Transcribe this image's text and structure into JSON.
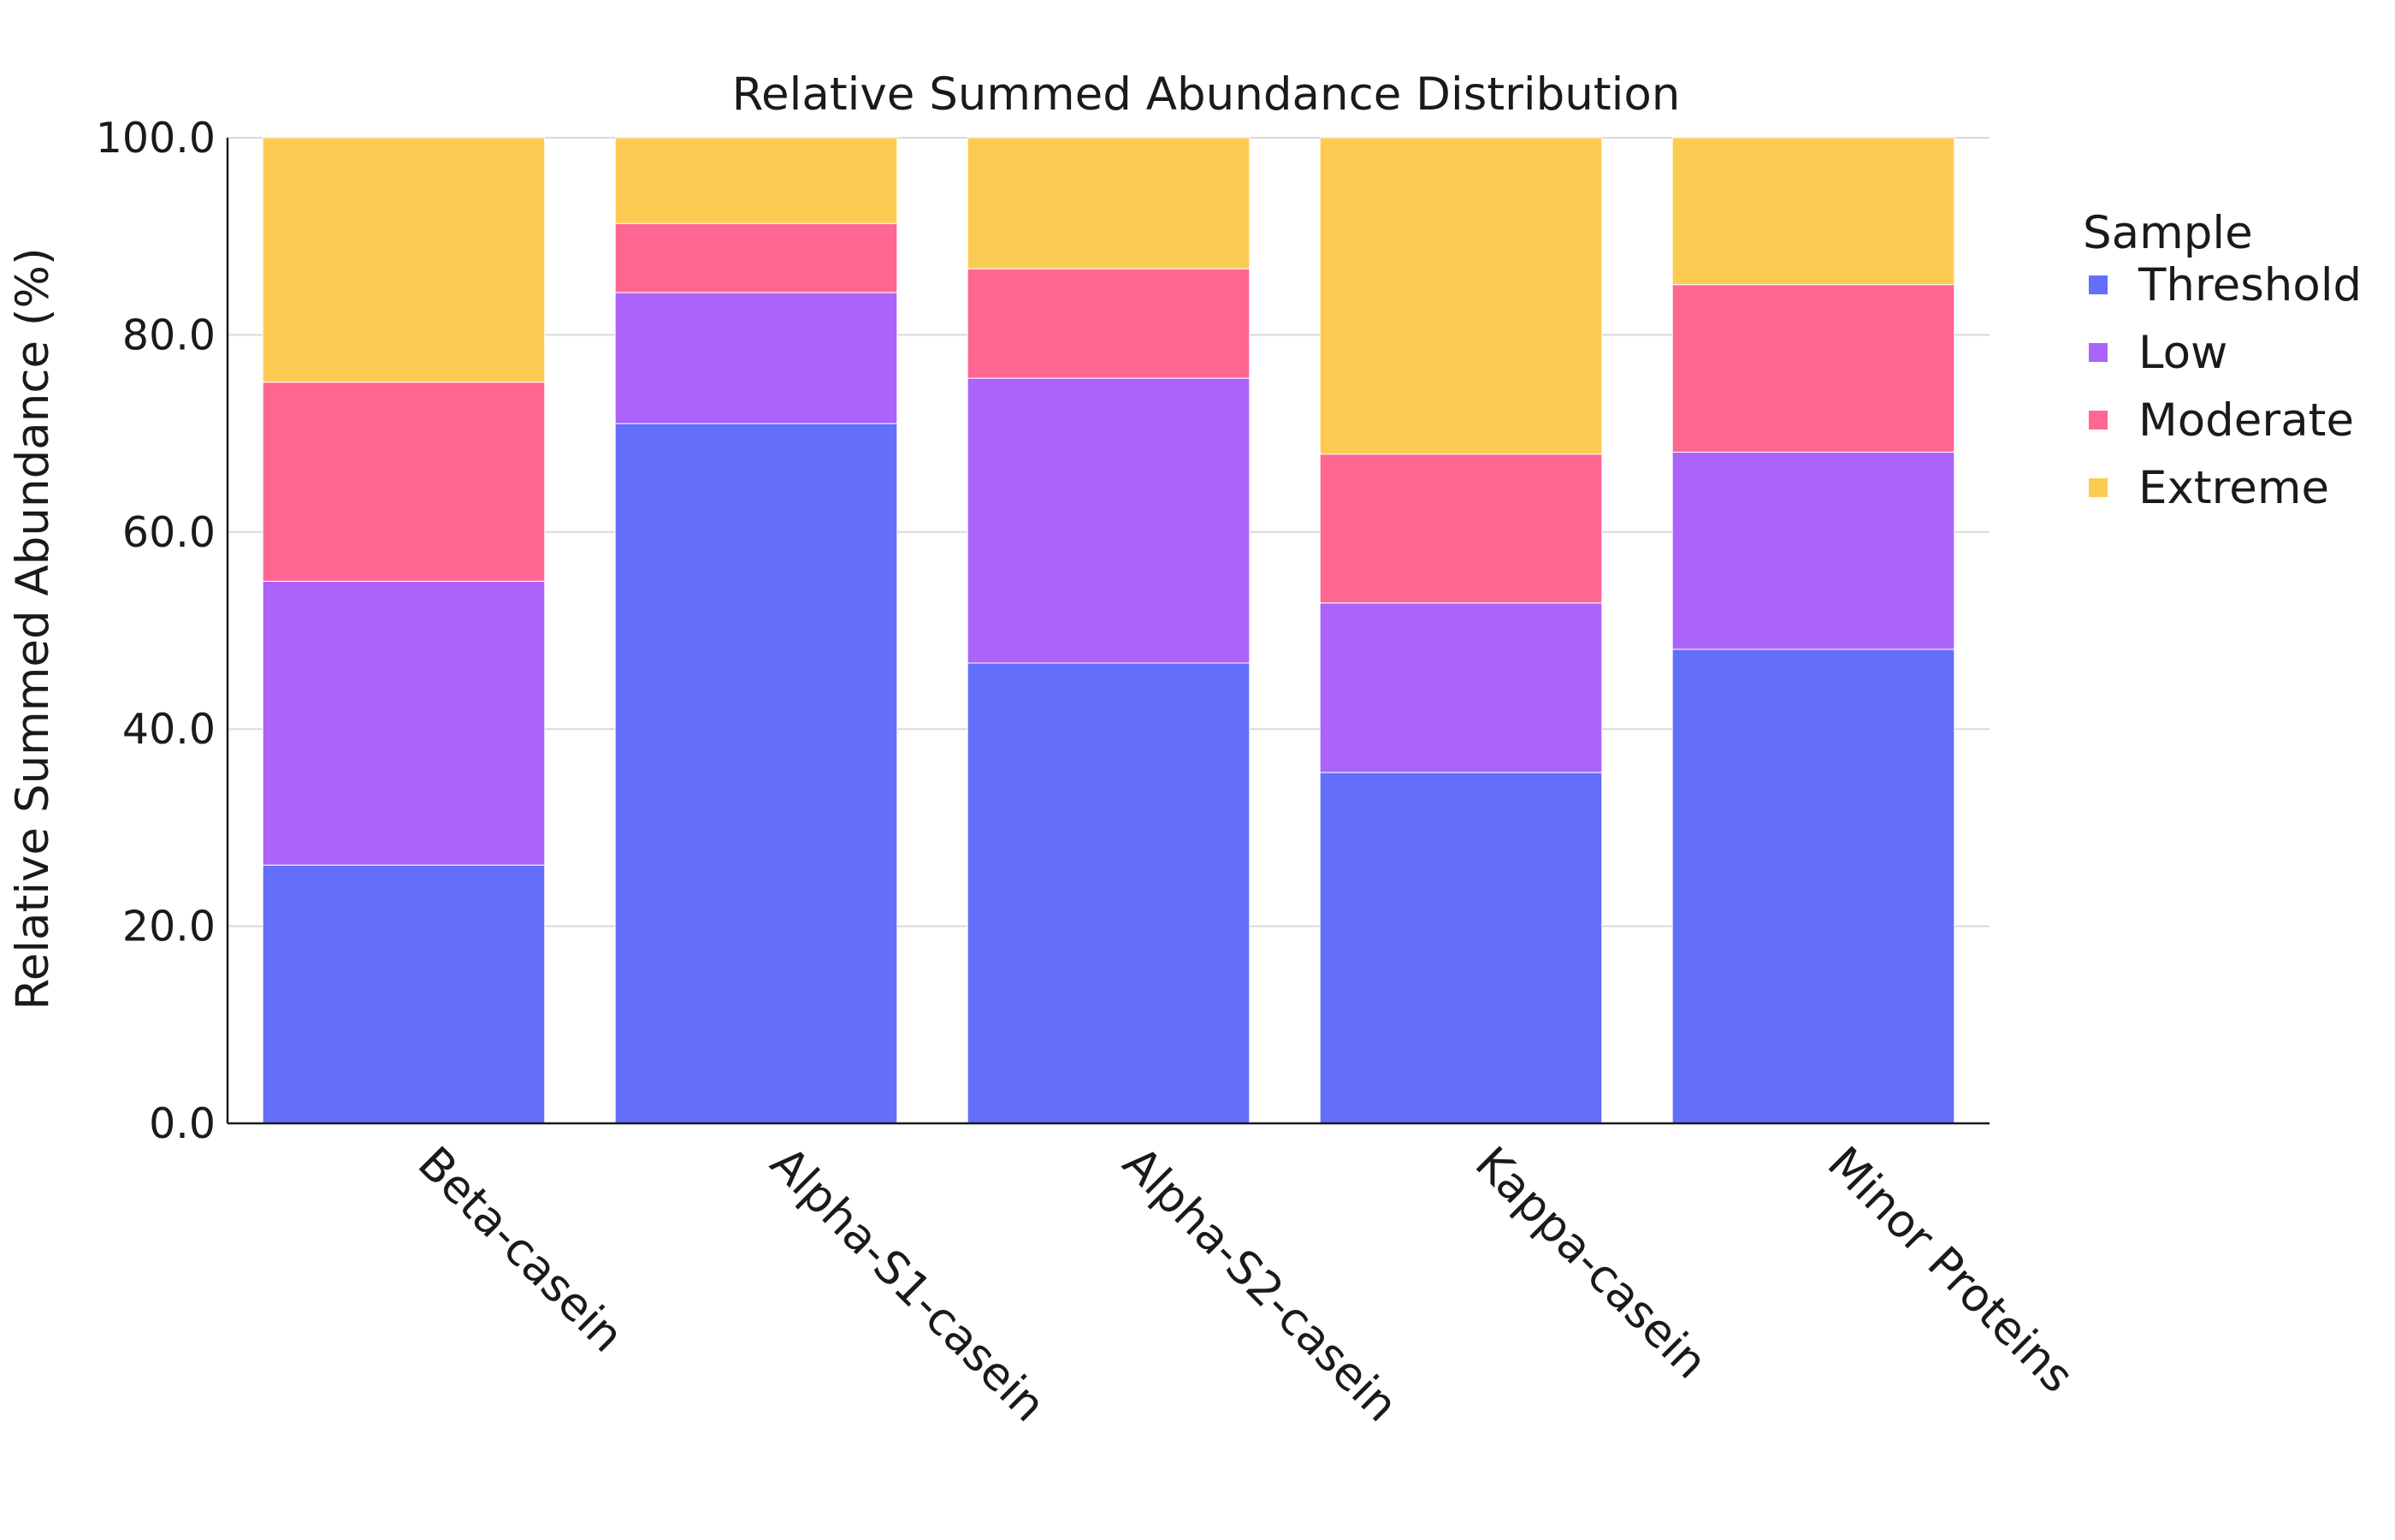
{
  "chart_data": {
    "type": "bar",
    "stacked": true,
    "title": "Relative Summed Abundance Distribution",
    "xlabel": "",
    "ylabel": "Relative Summed Abundance (%)",
    "ylim": [
      0,
      100
    ],
    "yticks": [
      "0.0",
      "20.0",
      "40.0",
      "60.0",
      "80.0",
      "100.0"
    ],
    "grid": true,
    "legend_title": "Sample",
    "legend_position": "right",
    "categories": [
      "Beta-casein",
      "Alpha-S1-casein",
      "Alpha-S2-casein",
      "Kappa-casein",
      "Minor Proteins"
    ],
    "series": [
      {
        "name": "Threshold",
        "color": "#636EFA",
        "values": [
          26.2,
          71.0,
          46.7,
          35.6,
          48.1
        ]
      },
      {
        "name": "Low",
        "color": "#AB63FA",
        "values": [
          28.8,
          13.3,
          28.9,
          17.2,
          20.0
        ]
      },
      {
        "name": "Moderate",
        "color": "#FF6692",
        "values": [
          20.2,
          7.0,
          11.1,
          15.1,
          17.0
        ]
      },
      {
        "name": "Extreme",
        "color": "#FECB52",
        "values": [
          24.8,
          8.7,
          13.3,
          32.1,
          14.9
        ]
      }
    ]
  }
}
